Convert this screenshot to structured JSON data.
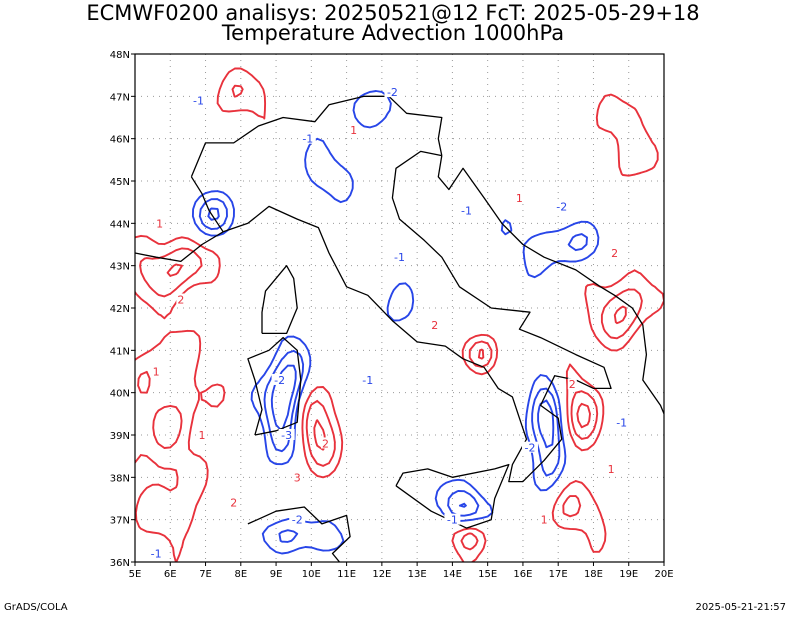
{
  "title_line1": "ECMWF0200 analisys: 20250521@12 FcT: 2025-05-29+18",
  "title_line2": "Temperature Advection 1000hPa",
  "footer_left": "GrADS/COLA",
  "footer_right": "2025-05-21-21:57",
  "map": {
    "lon_range": [
      5,
      20
    ],
    "lat_range": [
      36,
      48
    ],
    "x_ticks": [
      "5E",
      "6E",
      "7E",
      "8E",
      "9E",
      "10E",
      "11E",
      "12E",
      "13E",
      "14E",
      "15E",
      "16E",
      "17E",
      "18E",
      "19E",
      "20E"
    ],
    "y_ticks": [
      "36N",
      "37N",
      "38N",
      "39N",
      "40N",
      "41N",
      "42N",
      "43N",
      "44N",
      "45N",
      "46N",
      "47N",
      "48N"
    ],
    "grid": true,
    "colors": {
      "positive_contour": "#e8323c",
      "negative_contour": "#2846e8",
      "coastline": "#000000",
      "grid": "#9a9a9a"
    },
    "contour_labels_positive": [
      "1",
      "2",
      "1",
      "1",
      "2",
      "3",
      "2",
      "1",
      "2",
      "1",
      "2",
      "1",
      "2",
      "1"
    ],
    "contour_labels_negative": [
      "-1",
      "-2",
      "-1",
      "-2",
      "-1",
      "-2",
      "-1",
      "-3",
      "-2",
      "-1",
      "-1",
      "-1",
      "-2",
      "-1"
    ]
  }
}
